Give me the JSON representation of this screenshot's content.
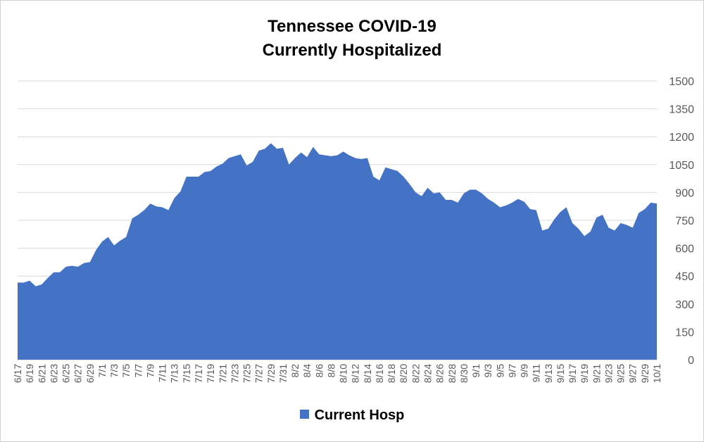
{
  "chart_data": {
    "type": "area",
    "title": [
      "Tennessee COVID-19",
      "Currently Hospitalized"
    ],
    "xlabel": "",
    "ylabel": "",
    "ylim": [
      0,
      1500
    ],
    "yticks": [
      0,
      150,
      300,
      450,
      600,
      750,
      900,
      1050,
      1200,
      1350,
      1500
    ],
    "y_axis_side": "right",
    "grid": true,
    "legend_position": "bottom",
    "color": "#4472C4",
    "x_labels": [
      "6/17",
      "6/19",
      "6/21",
      "6/23",
      "6/25",
      "6/27",
      "6/29",
      "7/1",
      "7/3",
      "7/5",
      "7/7",
      "7/9",
      "7/11",
      "7/13",
      "7/15",
      "7/17",
      "7/19",
      "7/21",
      "7/23",
      "7/25",
      "7/27",
      "7/29",
      "7/31",
      "8/2",
      "8/4",
      "8/6",
      "8/8",
      "8/10",
      "8/12",
      "8/14",
      "8/16",
      "8/18",
      "8/20",
      "8/22",
      "8/24",
      "8/26",
      "8/28",
      "8/30",
      "9/1",
      "9/3",
      "9/5",
      "9/7",
      "9/9",
      "9/11",
      "9/13",
      "9/15",
      "9/17",
      "9/19",
      "9/21",
      "9/23",
      "9/25",
      "9/27",
      "9/29",
      "10/1"
    ],
    "series": [
      {
        "name": "Current Hosp",
        "values": [
          415,
          415,
          425,
          395,
          405,
          440,
          470,
          470,
          500,
          505,
          500,
          520,
          525,
          590,
          635,
          660,
          615,
          640,
          660,
          760,
          780,
          805,
          840,
          825,
          820,
          805,
          870,
          905,
          985,
          985,
          985,
          1010,
          1015,
          1040,
          1055,
          1085,
          1095,
          1105,
          1045,
          1065,
          1125,
          1135,
          1165,
          1135,
          1140,
          1050,
          1085,
          1115,
          1090,
          1145,
          1105,
          1100,
          1095,
          1100,
          1120,
          1100,
          1085,
          1080,
          1085,
          985,
          965,
          1035,
          1025,
          1015,
          985,
          945,
          900,
          880,
          925,
          895,
          900,
          860,
          860,
          845,
          895,
          915,
          915,
          895,
          865,
          845,
          820,
          830,
          845,
          865,
          850,
          810,
          805,
          695,
          705,
          755,
          795,
          820,
          735,
          705,
          665,
          690,
          765,
          780,
          710,
          695,
          735,
          725,
          710,
          790,
          810,
          845,
          840
        ]
      }
    ]
  }
}
